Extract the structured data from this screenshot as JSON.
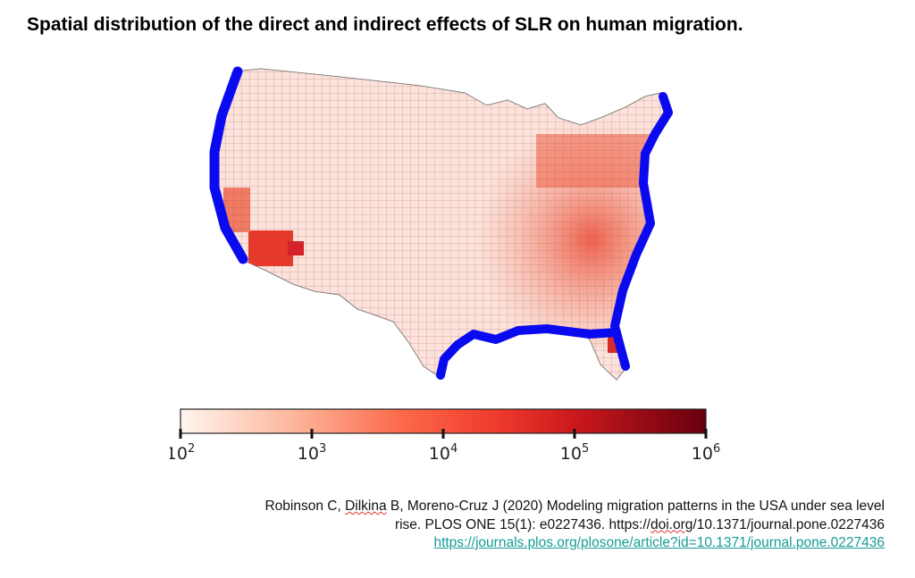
{
  "title": "Spatial distribution of the direct and indirect effects of SLR on human migration.",
  "map": {
    "region": "Contiguous USA counties",
    "colors": {
      "coastal_inundated": "#0a0af0",
      "low": "#fde8e2",
      "mid": "#f4735a",
      "high": "#c8001a",
      "border": "#555555"
    }
  },
  "colorbar": {
    "scale": "log",
    "range": [
      100,
      1000000
    ],
    "ticks": [
      {
        "base": "10",
        "exp": "2"
      },
      {
        "base": "10",
        "exp": "3"
      },
      {
        "base": "10",
        "exp": "4"
      },
      {
        "base": "10",
        "exp": "5"
      },
      {
        "base": "10",
        "exp": "6"
      }
    ],
    "colors": [
      "#fff5f0",
      "#fcae91",
      "#fb6a4a",
      "#ef3b2c",
      "#cb181d",
      "#67000d"
    ]
  },
  "citation": {
    "line1_a": "Robinson C, ",
    "line1_b": "Dilkina",
    "line1_c": " B, Moreno-Cruz J (2020) Modeling migration patterns in the USA under sea level",
    "line2_a": "rise. PLOS ONE 15(1): e0227436. https://",
    "line2_b": "doi.org",
    "line2_c": "/10.1371/journal.pone.0227436",
    "link": "https://journals.plos.org/plosone/article?id=10.1371/journal.pone.0227436"
  }
}
